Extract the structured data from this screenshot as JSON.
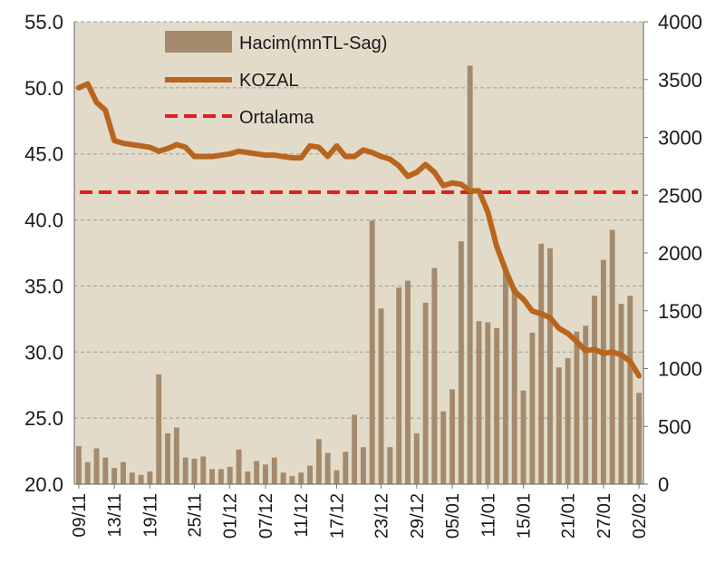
{
  "chart_data": {
    "type": "bar+line",
    "title": "",
    "left_axis": {
      "ticks": [
        "55.0",
        "50.0",
        "45.0",
        "40.0",
        "35.0",
        "30.0",
        "25.0",
        "20.0"
      ],
      "range": [
        20,
        55
      ]
    },
    "right_axis": {
      "ticks": [
        "4000",
        "3500",
        "3000",
        "2500",
        "2000",
        "1500",
        "1000",
        "500",
        "0"
      ],
      "range": [
        0,
        4000
      ]
    },
    "x_tick_labels": [
      "09/11",
      "13/11",
      "19/11",
      "25/11",
      "01/12",
      "07/12",
      "11/12",
      "17/12",
      "23/12",
      "29/12",
      "05/01",
      "11/01",
      "15/01",
      "21/01",
      "27/01",
      "02/02"
    ],
    "legend": {
      "volume": "Hacim(mnTL-Sag)",
      "price": "KOZAL",
      "average": "Ortalama"
    },
    "colors": {
      "bar": "#a48a6c",
      "price_line": "#b8651e",
      "average_line": "#e02020",
      "plot_background": "#e2dbc9",
      "grid": "#9c9c9c"
    },
    "series": [
      {
        "name": "Hacim(mnTL-Sag)",
        "axis": "right",
        "values": [
          330,
          190,
          310,
          230,
          140,
          190,
          100,
          80,
          110,
          950,
          440,
          490,
          230,
          220,
          240,
          130,
          130,
          150,
          300,
          110,
          200,
          170,
          230,
          100,
          70,
          100,
          160,
          390,
          270,
          120,
          280,
          600,
          320,
          2280,
          1520,
          320,
          1700,
          1760,
          440,
          1570,
          1870,
          630,
          820,
          2100,
          3620,
          1410,
          1400,
          1350,
          1860,
          1700,
          810,
          1310,
          2080,
          2040,
          1010,
          1090,
          1320,
          1370,
          1630,
          1940,
          2200,
          1560,
          1630,
          790
        ],
        "price_equivalent": [
          23.2,
          21.5,
          22.8,
          21.8,
          21.2,
          21.6,
          20.9,
          20.9,
          21.0,
          28.3,
          23.9,
          24.3,
          22.0,
          21.9,
          22.1,
          21.1,
          21.1,
          21.3,
          22.6,
          21.0,
          21.7,
          21.5,
          22.0,
          20.9,
          20.6,
          20.9,
          21.4,
          23.4,
          22.4,
          21.0,
          22.5,
          25.3,
          22.8,
          40.4,
          33.4,
          22.8,
          35.2,
          35.4,
          23.9,
          33.8,
          36.4,
          25.5,
          27.2,
          38.4,
          51.7,
          32.3,
          32.3,
          31.8,
          36.3,
          34.9,
          27.1,
          31.5,
          38.2,
          37.9,
          28.6,
          29.5,
          31.5,
          32.1,
          34.8,
          36.7,
          38.9,
          32.9,
          32.5,
          26.1
        ]
      },
      {
        "name": "KOZAL",
        "axis": "left",
        "values": [
          50.0,
          50.3,
          48.9,
          48.3,
          46.0,
          45.8,
          45.7,
          45.6,
          45.5,
          45.2,
          45.4,
          45.7,
          45.5,
          44.8,
          44.8,
          44.8,
          44.9,
          45.0,
          45.2,
          45.1,
          45.0,
          44.9,
          44.9,
          44.8,
          44.7,
          44.7,
          45.6,
          45.5,
          44.8,
          45.6,
          44.8,
          44.8,
          45.3,
          45.1,
          44.8,
          44.6,
          44.1,
          43.3,
          43.6,
          44.2,
          43.6,
          42.6,
          42.8,
          42.7,
          42.2,
          42.2,
          40.6,
          38.0,
          36.2,
          34.6,
          34.0,
          33.1,
          32.9,
          32.6,
          31.8,
          31.4,
          30.8,
          30.1,
          30.2,
          29.9,
          30.0,
          29.8,
          29.3,
          28.2
        ]
      },
      {
        "name": "Ortalama",
        "axis": "left",
        "value": 42.1
      }
    ]
  }
}
